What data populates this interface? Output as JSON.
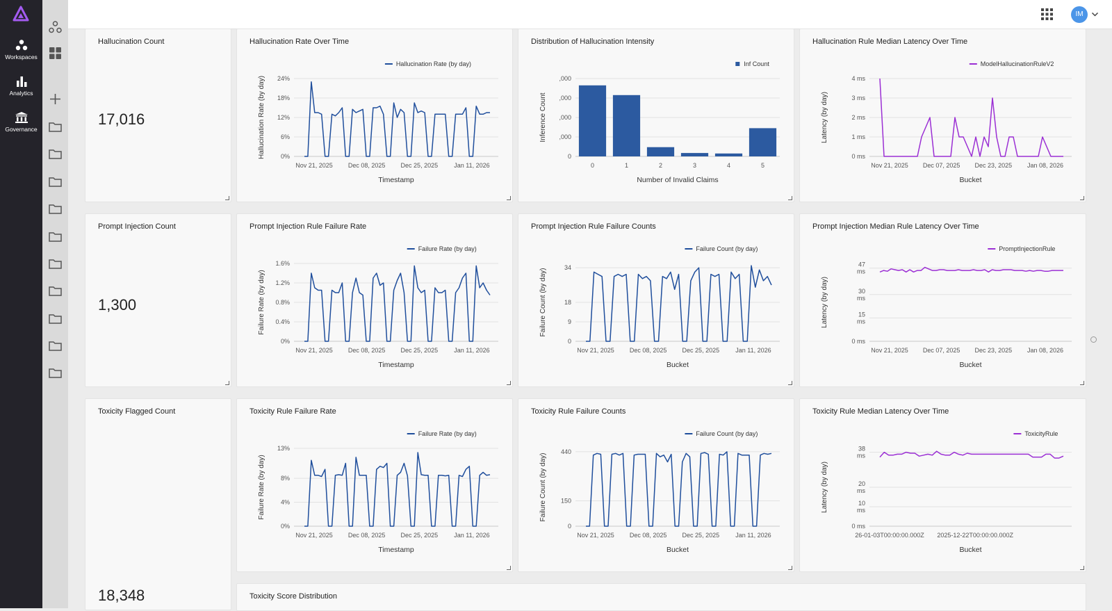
{
  "nav": {
    "items": [
      {
        "label": "Workspaces",
        "icon": "workspaces-icon"
      },
      {
        "label": "Analytics",
        "icon": "analytics-icon"
      },
      {
        "label": "Governance",
        "icon": "governance-icon"
      }
    ]
  },
  "user": {
    "initials": "IM"
  },
  "colors": {
    "blue": "#1f4e9c",
    "purple": "#9b2fd4",
    "bar": "#2c5aa0"
  },
  "panels": {
    "hallucination_count": {
      "title": "Hallucination Count",
      "value": "17,016"
    },
    "prompt_injection_count": {
      "title": "Prompt Injection Count",
      "value": "1,300"
    },
    "toxicity_flagged_count": {
      "title": "Toxicity Flagged Count",
      "value": "18,348"
    },
    "toxicity_score_distribution": {
      "title": "Toxicity Score Distribution"
    }
  },
  "chart_data": [
    {
      "id": "hall_rate",
      "type": "line",
      "title": "Hallucination Rate Over Time",
      "legend": "Hallucination Rate (by day)",
      "color": "#1f4e9c",
      "xlabel": "Timestamp",
      "ylabel": "Hallucination Rate (by day)",
      "yticks": [
        "0%",
        "6%",
        "12%",
        "18%",
        "24%"
      ],
      "ylim": [
        0,
        24
      ],
      "xticks": [
        "Nov 21, 2025",
        "Dec 08, 2025",
        "Dec 25, 2025",
        "Jan 11, 2026"
      ],
      "values": [
        0,
        0,
        23,
        13.5,
        13.5,
        13,
        0,
        0,
        13,
        12.5,
        13.5,
        15,
        0,
        0,
        14.5,
        13.5,
        14,
        14.5,
        0,
        0,
        15,
        15,
        15.5,
        13,
        0,
        0,
        16.5,
        12,
        14.5,
        13.5,
        0,
        0,
        16.5,
        13.5,
        14,
        13.5,
        0,
        0,
        13,
        13,
        13,
        13,
        0,
        0,
        13,
        13,
        13,
        15,
        0,
        0,
        15.5,
        13,
        13,
        13.5,
        13.5
      ]
    },
    {
      "id": "hall_dist",
      "type": "bar",
      "title": "Distribution of Hallucination Intensity",
      "legend": "Inf Count",
      "color": "#2c5aa0",
      "xlabel": "Number of Invalid Claims",
      "ylabel": "Inference Count",
      "categories": [
        "0",
        "1",
        "2",
        "3",
        "4",
        "5"
      ],
      "values": [
        7300,
        6300,
        950,
        350,
        300,
        2900
      ],
      "yticks": [
        "0",
        ",000",
        ",000",
        ",000",
        ",000"
      ],
      "ylim": [
        0,
        8000
      ]
    },
    {
      "id": "hall_latency",
      "type": "line",
      "title": "Hallucination Rule Median Latency Over Time",
      "legend": "ModelHallucinationRuleV2",
      "color": "#9b2fd4",
      "xlabel": "Bucket",
      "ylabel": "Latency (by day)",
      "yticks": [
        "0 ms",
        "1 ms",
        "2 ms",
        "3 ms",
        "4 ms"
      ],
      "ylim": [
        0,
        4
      ],
      "xticks": [
        "Nov 21, 2025",
        "Dec 07, 2025",
        "Dec 23, 2025",
        "Jan 08, 2026"
      ],
      "values": [
        4,
        0,
        0,
        0,
        0,
        0,
        0,
        0,
        0,
        0,
        1,
        1.5,
        2,
        0,
        0,
        0,
        0,
        0,
        2,
        1,
        1,
        0.5,
        0,
        1,
        0,
        1,
        0.5,
        3,
        1,
        0,
        0,
        1,
        1,
        0,
        0,
        0,
        0,
        0,
        0,
        1,
        0.5,
        0,
        0,
        0,
        0
      ]
    },
    {
      "id": "pi_rate",
      "type": "line",
      "title": "Prompt Injection Rule Failure Rate",
      "legend": "Failure Rate (by day)",
      "color": "#1f4e9c",
      "xlabel": "Timestamp",
      "ylabel": "Failure Rate (by day)",
      "yticks": [
        "0%",
        "0.4%",
        "0.8%",
        "1.2%",
        "1.6%"
      ],
      "ylim": [
        0,
        1.6
      ],
      "xticks": [
        "Nov 21, 2025",
        "Dec 08, 2025",
        "Dec 25, 2025",
        "Jan 11, 2026"
      ],
      "values": [
        0,
        0,
        1.4,
        1.1,
        1.05,
        1.05,
        0,
        0,
        1.05,
        1.0,
        1.0,
        1.2,
        0,
        0,
        1.0,
        1.3,
        1.0,
        0.95,
        0,
        0,
        1.3,
        1.4,
        1.15,
        1.2,
        0,
        0,
        1.05,
        1.25,
        1.4,
        1.0,
        0,
        0,
        1.55,
        1.1,
        1.0,
        1.05,
        0,
        0,
        1.1,
        1.0,
        1.0,
        1.05,
        0,
        0,
        1.0,
        1.1,
        1.3,
        1.4,
        0,
        0,
        1.55,
        1.1,
        1.2,
        1.05,
        0.95
      ]
    },
    {
      "id": "pi_counts",
      "type": "line",
      "title": "Prompt Injection Rule Failure Counts",
      "legend": "Failure Count (by day)",
      "color": "#1f4e9c",
      "xlabel": "Bucket",
      "ylabel": "Failure Count (by day)",
      "yticks": [
        "0",
        "9",
        "18",
        "34"
      ],
      "ytick_values": [
        0,
        9,
        18,
        34
      ],
      "ylim": [
        0,
        36
      ],
      "xticks": [
        "Nov 21, 2025",
        "Dec 08, 2025",
        "Dec 25, 2025",
        "Jan 11, 2026"
      ],
      "values": [
        0,
        0,
        32,
        31,
        30,
        0,
        0,
        30,
        31,
        30,
        31,
        0,
        0,
        31,
        29,
        30,
        28,
        0,
        0,
        30,
        29,
        32,
        24,
        31,
        0,
        0,
        28,
        32,
        34,
        0,
        0,
        31,
        30,
        31,
        0,
        0,
        32,
        29,
        31,
        0,
        0,
        35,
        25,
        33,
        28,
        30,
        26
      ]
    },
    {
      "id": "pi_latency",
      "type": "line",
      "title": "Prompt Injection Median Rule Latency Over Time",
      "legend": "PromptInjectionRule",
      "color": "#9b2fd4",
      "xlabel": "Bucket",
      "ylabel": "Latency (by day)",
      "yticks": [
        "0 ms",
        "15 ms",
        "30 ms",
        "47 ms"
      ],
      "ytick_values": [
        0,
        15,
        30,
        47
      ],
      "ylim": [
        0,
        50
      ],
      "xticks": [
        "Nov 21, 2025",
        "Dec 07, 2025",
        "Dec 23, 2025",
        "Jan 08, 2026"
      ],
      "values": [
        44.5,
        45.5,
        45,
        46.5,
        46,
        45.5,
        46,
        44.5,
        46,
        44.5,
        45.5,
        45.5,
        47.5,
        46.5,
        45.5,
        45.5,
        46,
        46,
        45.5,
        45.5,
        45.5,
        46,
        45.5,
        45.5,
        45.5,
        46,
        45.5,
        45.5,
        46,
        44.5,
        46,
        45.5,
        45.5,
        46,
        46,
        46,
        45.5,
        45.5,
        45.5,
        45,
        45.5,
        45,
        45.5,
        45.5,
        45,
        45,
        45.5,
        45.5,
        45.5,
        45.5
      ]
    },
    {
      "id": "tox_rate",
      "type": "line",
      "title": "Toxicity Rule Failure Rate",
      "legend": "Failure Rate (by day)",
      "color": "#1f4e9c",
      "xlabel": "Timestamp",
      "ylabel": "Failure Rate (by day)",
      "yticks": [
        "0%",
        "4%",
        "8%",
        "13%"
      ],
      "ytick_values": [
        0,
        4,
        8,
        13
      ],
      "ylim": [
        0,
        13
      ],
      "xticks": [
        "Nov 21, 2025",
        "Dec 08, 2025",
        "Dec 25, 2025",
        "Jan 11, 2026"
      ],
      "values": [
        0,
        0,
        11,
        8.5,
        8.5,
        8.3,
        9.5,
        0,
        0,
        8.5,
        8.6,
        8.5,
        10.5,
        0,
        0,
        11.5,
        8.5,
        8.5,
        8.5,
        0,
        0,
        9.5,
        10,
        9.8,
        10.5,
        0,
        0,
        8.5,
        9,
        10.5,
        8.4,
        0,
        0,
        12.3,
        8.6,
        8.5,
        8.5,
        0,
        0,
        8.5,
        8.5,
        8.4,
        8.5,
        0,
        0,
        8.5,
        8.3,
        9.5,
        10,
        0,
        0,
        8.5,
        9,
        8.5,
        8.6
      ]
    },
    {
      "id": "tox_counts",
      "type": "line",
      "title": "Toxicity Rule Failure Counts",
      "legend": "Failure Count (by day)",
      "color": "#1f4e9c",
      "xlabel": "Bucket",
      "ylabel": "Failure Count (by day)",
      "yticks": [
        "0",
        "150",
        "440"
      ],
      "ytick_values": [
        0,
        150,
        440
      ],
      "ylim": [
        0,
        460
      ],
      "xticks": [
        "Nov 21, 2025",
        "Dec 08, 2025",
        "Dec 25, 2025",
        "Jan 11, 2026"
      ],
      "values": [
        0,
        0,
        420,
        430,
        425,
        0,
        0,
        425,
        430,
        420,
        430,
        0,
        0,
        420,
        425,
        425,
        425,
        0,
        0,
        430,
        410,
        420,
        380,
        425,
        0,
        0,
        380,
        430,
        410,
        0,
        0,
        430,
        435,
        425,
        0,
        0,
        425,
        420,
        440,
        0,
        0,
        430,
        420,
        420,
        420,
        0,
        0,
        420,
        430,
        425,
        430
      ]
    },
    {
      "id": "tox_latency",
      "type": "line",
      "title": "Toxicity Rule Median Latency Over Time",
      "legend": "ToxicityRule",
      "color": "#9b2fd4",
      "xlabel": "Bucket",
      "ylabel": "Latency (by day)",
      "yticks": [
        "0 ms",
        "10 ms",
        "20 ms",
        "38 ms"
      ],
      "ytick_values": [
        0,
        10,
        20,
        38
      ],
      "ylim": [
        0,
        40
      ],
      "xticks": [
        "26-01-03T00:00:00.000Z",
        "2025-12-22T00:00:00.000Z"
      ],
      "values": [
        35.5,
        38,
        36.5,
        36.5,
        37,
        37,
        38,
        37.5,
        37.5,
        36,
        36.5,
        37,
        36.5,
        38.5,
        37,
        36.5,
        36.5,
        38,
        37,
        36.5,
        37.5,
        37,
        37,
        37,
        37,
        37,
        37,
        37,
        37,
        37,
        37,
        37,
        37,
        37,
        37,
        35.5,
        35.5,
        35.5,
        37,
        37,
        35,
        35,
        36
      ]
    }
  ]
}
